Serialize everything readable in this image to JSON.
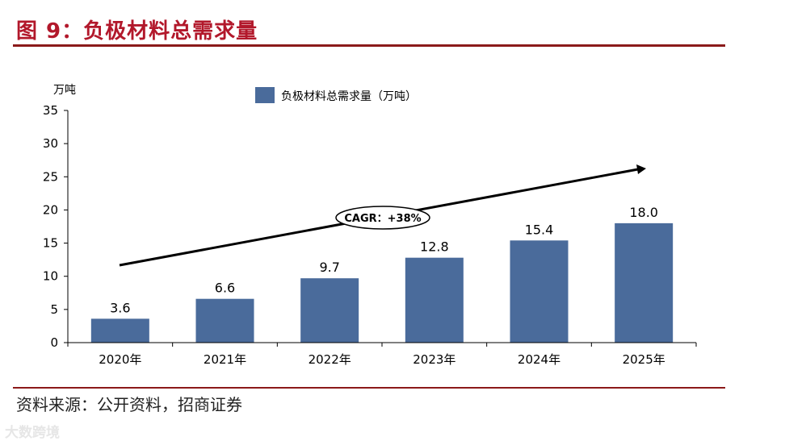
{
  "header": {
    "title": "图 9：负极材料总需求量"
  },
  "footer": {
    "source": "资料来源：公开资料，招商证券",
    "watermark": "大数跨境"
  },
  "colors": {
    "accent": "#8b1a1a",
    "title": "#b2182b",
    "bar": "#4a6b9b"
  },
  "chart_data": {
    "type": "bar",
    "categories": [
      "2020年",
      "2021年",
      "2022年",
      "2023年",
      "2024年",
      "2025年"
    ],
    "series": [
      {
        "name": "负极材料总需求量（万吨）",
        "values": [
          3.6,
          6.6,
          9.7,
          12.8,
          15.4,
          18.0
        ]
      }
    ],
    "data_labels": [
      "3.6",
      "6.6",
      "9.7",
      "12.8",
      "15.4",
      "18.0"
    ],
    "ylabel": "万吨",
    "ylim": [
      0,
      35
    ],
    "yticks": [
      0,
      5,
      10,
      15,
      20,
      25,
      30,
      35
    ],
    "legend_position": "top-center",
    "grid": false,
    "annotation": "CAGR：+38%"
  }
}
